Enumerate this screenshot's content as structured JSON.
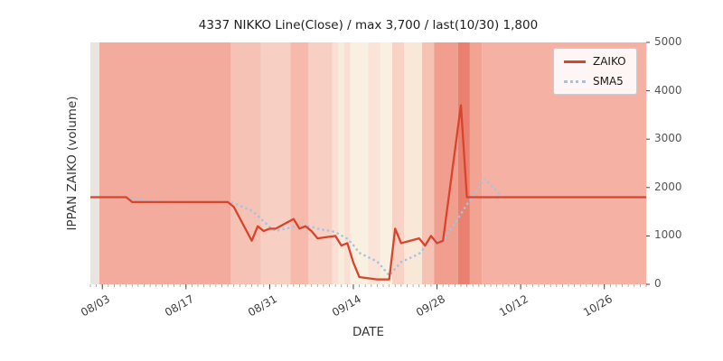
{
  "chart_data": {
    "type": "line",
    "title": "4337 NIKKO Line(Close) / max 3,700 / last(10/30) 1,800",
    "xlabel": "DATE",
    "ylabel": "IPPAN ZAIKO (volume)",
    "ylim": [
      0,
      5000
    ],
    "yticks": [
      0,
      1000,
      2000,
      3000,
      4000,
      5000
    ],
    "xtick_labels": [
      "08/03",
      "08/17",
      "08/31",
      "09/14",
      "09/28",
      "10/12",
      "10/26"
    ],
    "grid": false,
    "legend": {
      "position": "upper right",
      "entries": [
        {
          "label": "ZAIKO",
          "color": "#d8442c",
          "style": "solid"
        },
        {
          "label": "SMA5",
          "color": "#a2c3e3",
          "style": "dotted"
        }
      ]
    },
    "series": [
      {
        "name": "ZAIKO",
        "color": "#d8442c",
        "style": "solid",
        "dates": [
          "08/01",
          "08/02",
          "08/03",
          "08/04",
          "08/07",
          "08/08",
          "08/09",
          "08/10",
          "08/11",
          "08/14",
          "08/15",
          "08/16",
          "08/17",
          "08/18",
          "08/21",
          "08/22",
          "08/23",
          "08/24",
          "08/25",
          "08/28",
          "08/29",
          "08/30",
          "08/31",
          "09/01",
          "09/04",
          "09/05",
          "09/06",
          "09/07",
          "09/08",
          "09/11",
          "09/12",
          "09/13",
          "09/14",
          "09/15",
          "09/18",
          "09/19",
          "09/20",
          "09/21",
          "09/22",
          "09/25",
          "09/26",
          "09/27",
          "09/28",
          "09/29",
          "10/02",
          "10/03",
          "10/04",
          "10/05",
          "10/06",
          "10/09",
          "10/10",
          "10/11",
          "10/12",
          "10/13",
          "10/16",
          "10/17",
          "10/18",
          "10/19",
          "10/20",
          "10/23",
          "10/24",
          "10/25",
          "10/26",
          "10/27",
          "10/30"
        ],
        "values": [
          1800,
          1800,
          1800,
          1800,
          1800,
          1700,
          1700,
          1700,
          1700,
          1700,
          1700,
          1700,
          1700,
          1700,
          1700,
          1700,
          1700,
          1700,
          1600,
          900,
          1200,
          1100,
          1150,
          1150,
          1350,
          1150,
          1200,
          1100,
          950,
          1000,
          800,
          850,
          450,
          150,
          100,
          100,
          100,
          1150,
          850,
          950,
          800,
          1000,
          850,
          900,
          3700,
          1800,
          1800,
          1800,
          1800,
          1800,
          1800,
          1800,
          1800,
          1800,
          1800,
          1800,
          1800,
          1800,
          1800,
          1800,
          1800,
          1800,
          1800,
          1800,
          1800
        ]
      },
      {
        "name": "SMA5",
        "color": "#a2c3e3",
        "style": "dotted",
        "derived_from": "ZAIKO",
        "window": 5
      }
    ],
    "background_bands": [
      {
        "from": "07/29",
        "to": "08/02",
        "color": "#e9e6e2"
      },
      {
        "from": "08/03",
        "to": "08/24",
        "color": "#f3ab9d"
      },
      {
        "from": "08/25",
        "to": "08/29",
        "color": "#f6c2b5"
      },
      {
        "from": "08/30",
        "to": "09/03",
        "color": "#f8cfc3"
      },
      {
        "from": "09/04",
        "to": "09/06",
        "color": "#f5baac"
      },
      {
        "from": "09/07",
        "to": "09/10",
        "color": "#f8cfc3"
      },
      {
        "from": "09/11",
        "to": "09/11",
        "color": "#fadfd4"
      },
      {
        "from": "09/12",
        "to": "09/12",
        "color": "#f9ecdc"
      },
      {
        "from": "09/13",
        "to": "09/13",
        "color": "#fadfd4"
      },
      {
        "from": "09/14",
        "to": "09/16",
        "color": "#f9f0e1"
      },
      {
        "from": "09/17",
        "to": "09/18",
        "color": "#fae3d7"
      },
      {
        "from": "09/19",
        "to": "09/20",
        "color": "#f9f0e1"
      },
      {
        "from": "09/21",
        "to": "09/22",
        "color": "#f8d3c5"
      },
      {
        "from": "09/23",
        "to": "09/25",
        "color": "#f9e8d8"
      },
      {
        "from": "09/26",
        "to": "09/27",
        "color": "#f6c2b4"
      },
      {
        "from": "09/28",
        "to": "10/01",
        "color": "#f09f8e"
      },
      {
        "from": "10/02",
        "to": "10/03",
        "color": "#ea8170"
      },
      {
        "from": "10/04",
        "to": "10/05",
        "color": "#f2a492"
      },
      {
        "from": "10/06",
        "to": "11/02",
        "color": "#f5b2a4"
      }
    ]
  }
}
